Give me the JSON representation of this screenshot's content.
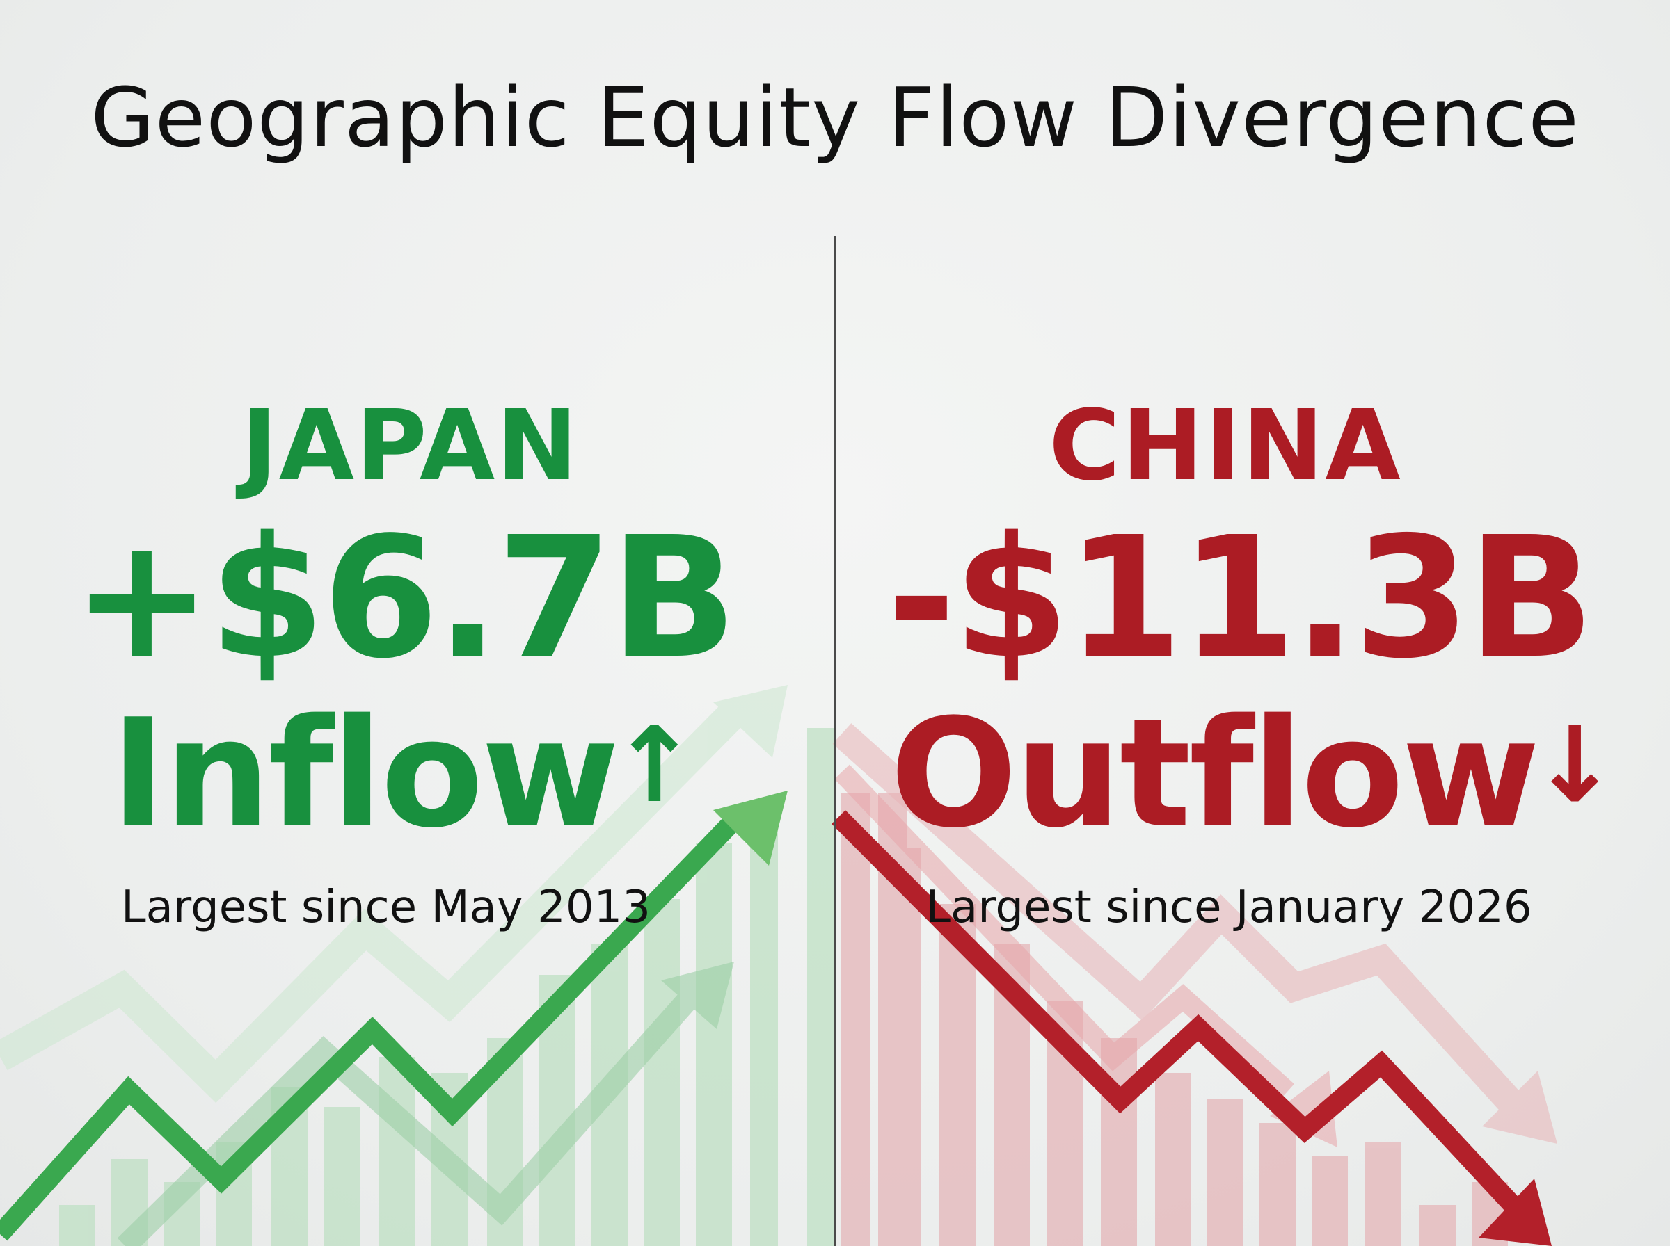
{
  "title": "Geographic Equity Flow Divergence",
  "colors": {
    "inflow": "#18903e",
    "outflow": "#ac1c24",
    "background": "#eef0ef"
  },
  "japan": {
    "region": "JAPAN",
    "amount": "+$6.7B",
    "flow_label": "Inflow",
    "arrow_icon": "up-arrow",
    "note": "Largest since May 2013"
  },
  "china": {
    "region": "CHINA",
    "amount": "-$11.3B",
    "flow_label": "Outflow",
    "arrow_icon": "down-arrow",
    "note": "Largest since January 2026"
  }
}
